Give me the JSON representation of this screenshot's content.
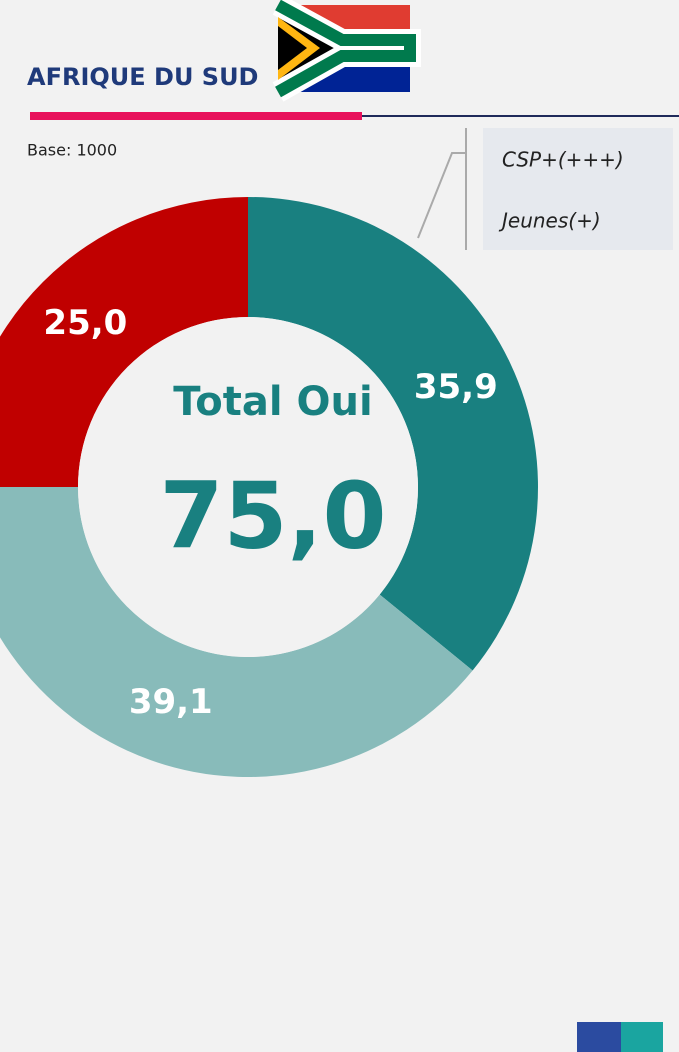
{
  "chart_data": {
    "type": "donut",
    "title": "AFRIQUE DU SUD",
    "subtitle": "Base: 1000",
    "values": [
      35.9,
      39.1,
      25.0
    ],
    "value_labels": [
      "35,9",
      "39,1",
      "25,0"
    ],
    "colors": [
      "#198080",
      "#88bbba",
      "#c00000"
    ],
    "center_title": "Total Oui",
    "center_value": "75,0",
    "annotations": [
      "CSP+(+++)",
      "Jeunes(+)"
    ]
  }
}
